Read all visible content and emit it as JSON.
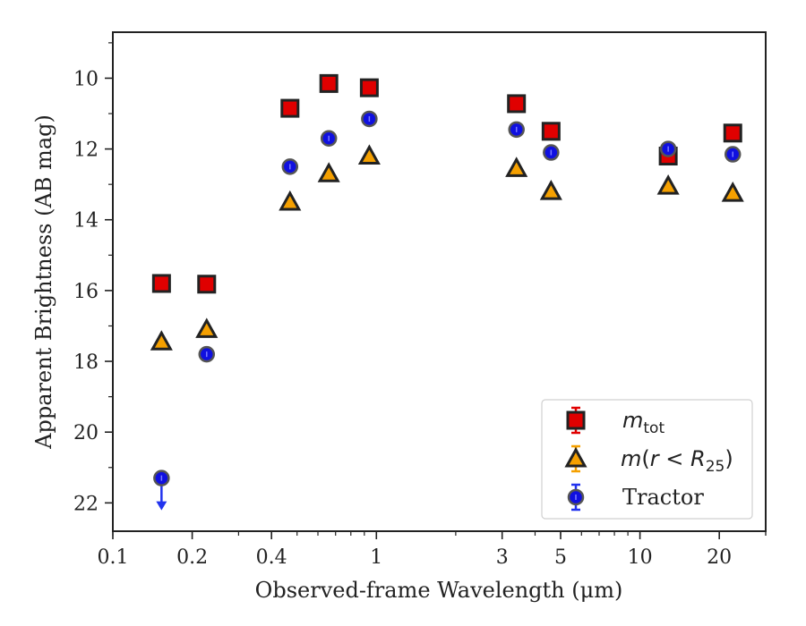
{
  "chart_data": {
    "type": "scatter",
    "xlabel": "Observed-frame Wavelength (μm)",
    "ylabel": "Apparent Brightness (AB mag)",
    "x_scale": "log",
    "xlim": [
      0.1,
      30
    ],
    "ylim": [
      22.8,
      8.7
    ],
    "y_inverted": true,
    "x_ticks": [
      {
        "value": 0.1,
        "label": "0.1"
      },
      {
        "value": 0.2,
        "label": "0.2"
      },
      {
        "value": 0.4,
        "label": "0.4"
      },
      {
        "value": 1,
        "label": "1"
      },
      {
        "value": 3,
        "label": "3"
      },
      {
        "value": 5,
        "label": "5"
      },
      {
        "value": 10,
        "label": "10"
      },
      {
        "value": 20,
        "label": "20"
      }
    ],
    "y_ticks": [
      10,
      12,
      14,
      16,
      18,
      20,
      22
    ],
    "grid": false,
    "legend_position": "lower-right",
    "series": [
      {
        "name": "m_tot",
        "marker": "square",
        "color": "#e00000",
        "edge_color": "#222222",
        "errorbar_color": "#e00000",
        "points": [
          {
            "x": 0.153,
            "y": 15.8
          },
          {
            "x": 0.227,
            "y": 15.82
          },
          {
            "x": 0.47,
            "y": 10.85
          },
          {
            "x": 0.66,
            "y": 10.15
          },
          {
            "x": 0.94,
            "y": 10.27
          },
          {
            "x": 3.4,
            "y": 10.72
          },
          {
            "x": 4.6,
            "y": 11.5
          },
          {
            "x": 12.8,
            "y": 12.2
          },
          {
            "x": 22.5,
            "y": 11.55
          }
        ]
      },
      {
        "name": "m(r < R25)",
        "marker": "triangle",
        "color": "#f5a000",
        "edge_color": "#222222",
        "errorbar_color": "#f5a000",
        "points": [
          {
            "x": 0.153,
            "y": 17.45
          },
          {
            "x": 0.227,
            "y": 17.1
          },
          {
            "x": 0.47,
            "y": 13.5
          },
          {
            "x": 0.66,
            "y": 12.7
          },
          {
            "x": 0.94,
            "y": 12.2
          },
          {
            "x": 3.4,
            "y": 12.55
          },
          {
            "x": 4.6,
            "y": 13.2
          },
          {
            "x": 12.8,
            "y": 13.05
          },
          {
            "x": 22.5,
            "y": 13.25
          }
        ]
      },
      {
        "name": "Tractor",
        "marker": "circle",
        "color": "#1010e0",
        "edge_color": "#555555",
        "errorbar_color": "#2233ee",
        "points": [
          {
            "x": 0.153,
            "y": 21.3,
            "upper_limit": true
          },
          {
            "x": 0.227,
            "y": 17.8
          },
          {
            "x": 0.47,
            "y": 12.5
          },
          {
            "x": 0.66,
            "y": 11.7
          },
          {
            "x": 0.94,
            "y": 11.15
          },
          {
            "x": 3.4,
            "y": 11.45
          },
          {
            "x": 4.6,
            "y": 12.1
          },
          {
            "x": 12.8,
            "y": 12.0
          },
          {
            "x": 22.5,
            "y": 12.15
          }
        ]
      }
    ]
  }
}
